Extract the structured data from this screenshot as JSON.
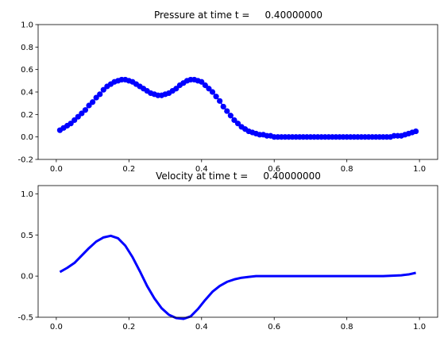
{
  "chart_data": [
    {
      "type": "scatter",
      "title": "Pressure at time t =     0.40000000",
      "xlabel": "",
      "ylabel": "",
      "xlim": [
        -0.05,
        1.05
      ],
      "ylim": [
        -0.2,
        1.0
      ],
      "xticks": [
        0.0,
        0.2,
        0.4,
        0.6,
        0.8,
        1.0
      ],
      "yticks": [
        -0.2,
        0.0,
        0.2,
        0.4,
        0.6,
        0.8,
        1.0
      ],
      "grid": false,
      "series": [
        {
          "color": "#0000ff",
          "marker": "circle",
          "x": [
            0.01,
            0.02,
            0.03,
            0.04,
            0.05,
            0.06,
            0.07,
            0.08,
            0.09,
            0.1,
            0.11,
            0.12,
            0.13,
            0.14,
            0.15,
            0.16,
            0.17,
            0.18,
            0.19,
            0.2,
            0.21,
            0.22,
            0.23,
            0.24,
            0.25,
            0.26,
            0.27,
            0.28,
            0.29,
            0.3,
            0.31,
            0.32,
            0.33,
            0.34,
            0.35,
            0.36,
            0.37,
            0.38,
            0.39,
            0.4,
            0.41,
            0.42,
            0.43,
            0.44,
            0.45,
            0.46,
            0.47,
            0.48,
            0.49,
            0.5,
            0.51,
            0.52,
            0.53,
            0.54,
            0.55,
            0.56,
            0.57,
            0.58,
            0.59,
            0.6,
            0.61,
            0.62,
            0.63,
            0.64,
            0.65,
            0.66,
            0.67,
            0.68,
            0.69,
            0.7,
            0.71,
            0.72,
            0.73,
            0.74,
            0.75,
            0.76,
            0.77,
            0.78,
            0.79,
            0.8,
            0.81,
            0.82,
            0.83,
            0.84,
            0.85,
            0.86,
            0.87,
            0.88,
            0.89,
            0.9,
            0.91,
            0.92,
            0.93,
            0.94,
            0.95,
            0.96,
            0.97,
            0.98,
            0.99
          ],
          "y": [
            0.06,
            0.08,
            0.1,
            0.12,
            0.15,
            0.18,
            0.21,
            0.24,
            0.28,
            0.31,
            0.35,
            0.38,
            0.42,
            0.45,
            0.47,
            0.49,
            0.5,
            0.51,
            0.51,
            0.5,
            0.49,
            0.47,
            0.45,
            0.43,
            0.41,
            0.39,
            0.38,
            0.37,
            0.37,
            0.38,
            0.39,
            0.41,
            0.43,
            0.46,
            0.48,
            0.5,
            0.51,
            0.51,
            0.5,
            0.49,
            0.46,
            0.43,
            0.4,
            0.36,
            0.32,
            0.27,
            0.23,
            0.19,
            0.15,
            0.12,
            0.09,
            0.07,
            0.05,
            0.04,
            0.03,
            0.02,
            0.02,
            0.01,
            0.01,
            0.0,
            0.0,
            0.0,
            0.0,
            0.0,
            0.0,
            0.0,
            0.0,
            0.0,
            0.0,
            0.0,
            0.0,
            0.0,
            0.0,
            0.0,
            0.0,
            0.0,
            0.0,
            0.0,
            0.0,
            0.0,
            0.0,
            0.0,
            0.0,
            0.0,
            0.0,
            0.0,
            0.0,
            0.0,
            0.0,
            0.0,
            0.0,
            0.0,
            0.01,
            0.01,
            0.01,
            0.02,
            0.03,
            0.04,
            0.05
          ]
        }
      ]
    },
    {
      "type": "line",
      "title": "Velocity at time t =     0.40000000",
      "xlabel": "",
      "ylabel": "",
      "xlim": [
        -0.05,
        1.05
      ],
      "ylim": [
        -0.5,
        1.1
      ],
      "xticks": [
        0.0,
        0.2,
        0.4,
        0.6,
        0.8,
        1.0
      ],
      "yticks": [
        -0.5,
        0.0,
        0.5,
        1.0
      ],
      "grid": false,
      "series": [
        {
          "color": "#0000ff",
          "x": [
            0.01,
            0.03,
            0.05,
            0.07,
            0.09,
            0.11,
            0.13,
            0.15,
            0.17,
            0.19,
            0.21,
            0.23,
            0.25,
            0.27,
            0.29,
            0.31,
            0.33,
            0.35,
            0.37,
            0.39,
            0.41,
            0.43,
            0.45,
            0.47,
            0.49,
            0.51,
            0.53,
            0.55,
            0.57,
            0.59,
            0.61,
            0.65,
            0.7,
            0.75,
            0.8,
            0.85,
            0.9,
            0.95,
            0.97,
            0.99
          ],
          "y": [
            0.05,
            0.1,
            0.16,
            0.25,
            0.34,
            0.42,
            0.47,
            0.49,
            0.46,
            0.37,
            0.23,
            0.06,
            -0.12,
            -0.27,
            -0.39,
            -0.47,
            -0.51,
            -0.52,
            -0.49,
            -0.4,
            -0.29,
            -0.19,
            -0.12,
            -0.07,
            -0.04,
            -0.02,
            -0.01,
            0.0,
            0.0,
            0.0,
            0.0,
            0.0,
            0.0,
            0.0,
            0.0,
            0.0,
            0.0,
            0.01,
            0.02,
            0.04
          ]
        }
      ]
    }
  ]
}
